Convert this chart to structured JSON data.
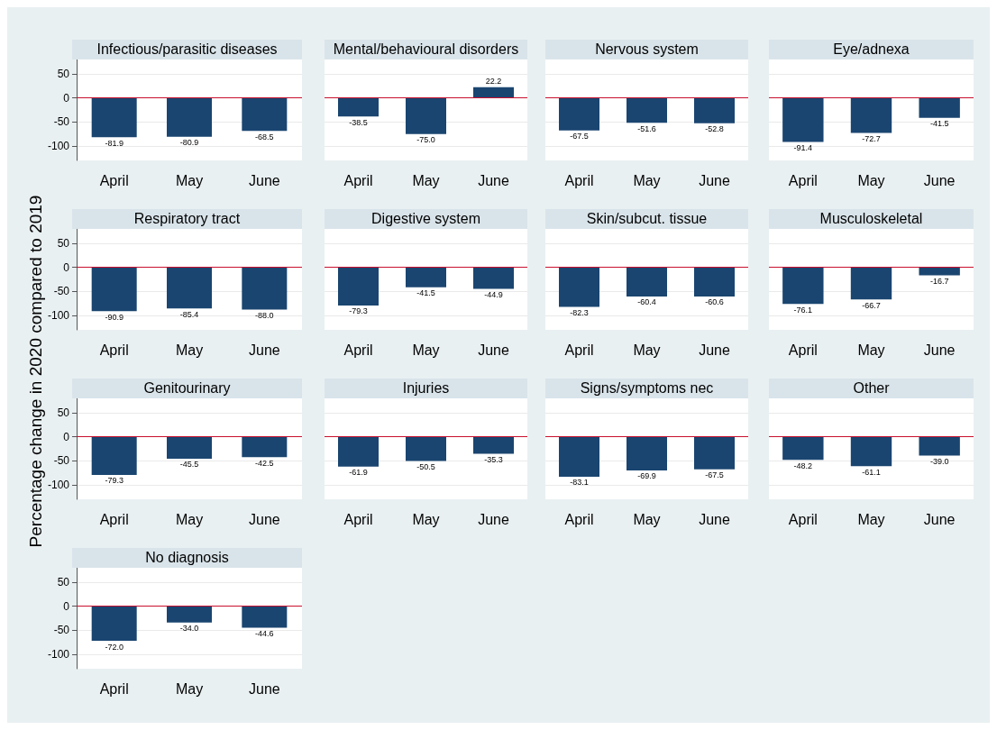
{
  "chart_data": [
    {
      "type": "bar",
      "title": "Infectious/parasitic diseases",
      "ylabel": "Percentage change in 2020 compared to 2019",
      "categories": [
        "April",
        "May",
        "June"
      ],
      "values": [
        -81.9,
        -80.9,
        -68.5
      ],
      "value_labels": [
        "-81.9",
        "-80.9",
        "-68.5"
      ],
      "color": "#1a4570",
      "ylim": [
        -130,
        80
      ],
      "yticks": [
        -100,
        -50,
        0,
        50
      ],
      "grid": "y",
      "ref_lines": [
        {
          "axis": "y",
          "value": 0,
          "color": "#c8102e"
        }
      ]
    },
    {
      "type": "bar",
      "title": "Mental/behavioural disorders",
      "categories": [
        "April",
        "May",
        "June"
      ],
      "values": [
        -38.5,
        -75,
        22.2
      ],
      "value_labels": [
        "-38.5",
        "-75.0",
        "22.2"
      ],
      "color": "#1a4570",
      "ylim": [
        -130,
        80
      ],
      "yticks": [
        -100,
        -50,
        0,
        50
      ],
      "grid": "y",
      "tick_labels": "x",
      "ref_lines": [
        {
          "axis": "y",
          "value": 0,
          "color": "#c8102e"
        }
      ]
    },
    {
      "type": "bar",
      "title": "Nervous system",
      "categories": [
        "April",
        "May",
        "June"
      ],
      "values": [
        -67.5,
        -51.6,
        -52.8
      ],
      "value_labels": [
        "-67.5",
        "-51.6",
        "-52.8"
      ],
      "color": "#1a4570",
      "ylim": [
        -130,
        80
      ],
      "yticks": [
        -100,
        -50,
        0,
        50
      ],
      "grid": "y",
      "tick_labels": "x",
      "ref_lines": [
        {
          "axis": "y",
          "value": 0,
          "color": "#c8102e"
        }
      ]
    },
    {
      "type": "bar",
      "title": "Eye/adnexa",
      "categories": [
        "April",
        "May",
        "June"
      ],
      "values": [
        -91.4,
        -72.7,
        -41.5
      ],
      "value_labels": [
        "-91.4",
        "-72.7",
        "-41.5"
      ],
      "color": "#1a4570",
      "ylim": [
        -130,
        80
      ],
      "yticks": [
        -100,
        -50,
        0,
        50
      ],
      "grid": "y",
      "tick_labels": "x",
      "ref_lines": [
        {
          "axis": "y",
          "value": 0,
          "color": "#c8102e"
        }
      ]
    },
    {
      "type": "bar",
      "title": "Respiratory tract",
      "categories": [
        "April",
        "May",
        "June"
      ],
      "values": [
        -90.9,
        -85.4,
        -88
      ],
      "value_labels": [
        "-90.9",
        "-85.4",
        "-88.0"
      ],
      "color": "#1a4570",
      "ylim": [
        -130,
        80
      ],
      "yticks": [
        -100,
        -50,
        0,
        50
      ],
      "grid": "y",
      "ref_lines": [
        {
          "axis": "y",
          "value": 0,
          "color": "#c8102e"
        }
      ]
    },
    {
      "type": "bar",
      "title": "Digestive system",
      "categories": [
        "April",
        "May",
        "June"
      ],
      "values": [
        -79.3,
        -41.5,
        -44.9
      ],
      "value_labels": [
        "-79.3",
        "-41.5",
        "-44.9"
      ],
      "color": "#1a4570",
      "ylim": [
        -130,
        80
      ],
      "yticks": [
        -100,
        -50,
        0,
        50
      ],
      "grid": "y",
      "tick_labels": "x",
      "ref_lines": [
        {
          "axis": "y",
          "value": 0,
          "color": "#c8102e"
        }
      ]
    },
    {
      "type": "bar",
      "title": "Skin/subcut. tissue",
      "categories": [
        "April",
        "May",
        "June"
      ],
      "values": [
        -82.3,
        -60.4,
        -60.6
      ],
      "value_labels": [
        "-82.3",
        "-60.4",
        "-60.6"
      ],
      "color": "#1a4570",
      "ylim": [
        -130,
        80
      ],
      "yticks": [
        -100,
        -50,
        0,
        50
      ],
      "grid": "y",
      "tick_labels": "x",
      "ref_lines": [
        {
          "axis": "y",
          "value": 0,
          "color": "#c8102e"
        }
      ]
    },
    {
      "type": "bar",
      "title": "Musculoskeletal",
      "categories": [
        "April",
        "May",
        "June"
      ],
      "values": [
        -76.1,
        -66.7,
        -16.7
      ],
      "value_labels": [
        "-76.1",
        "-66.7",
        "-16.7"
      ],
      "color": "#1a4570",
      "ylim": [
        -130,
        80
      ],
      "yticks": [
        -100,
        -50,
        0,
        50
      ],
      "grid": "y",
      "tick_labels": "x",
      "ref_lines": [
        {
          "axis": "y",
          "value": 0,
          "color": "#c8102e"
        }
      ]
    },
    {
      "type": "bar",
      "title": "Genitourinary",
      "categories": [
        "April",
        "May",
        "June"
      ],
      "values": [
        -79.3,
        -45.5,
        -42.5
      ],
      "value_labels": [
        "-79.3",
        "-45.5",
        "-42.5"
      ],
      "color": "#1a4570",
      "ylim": [
        -130,
        80
      ],
      "yticks": [
        -100,
        -50,
        0,
        50
      ],
      "grid": "y",
      "ref_lines": [
        {
          "axis": "y",
          "value": 0,
          "color": "#c8102e"
        }
      ]
    },
    {
      "type": "bar",
      "title": "Injuries",
      "categories": [
        "April",
        "May",
        "June"
      ],
      "values": [
        -61.9,
        -50.5,
        -35.3
      ],
      "value_labels": [
        "-61.9",
        "-50.5",
        "-35.3"
      ],
      "color": "#1a4570",
      "ylim": [
        -130,
        80
      ],
      "yticks": [
        -100,
        -50,
        0,
        50
      ],
      "grid": "y",
      "tick_labels": "x",
      "ref_lines": [
        {
          "axis": "y",
          "value": 0,
          "color": "#c8102e"
        }
      ]
    },
    {
      "type": "bar",
      "title": "Signs/symptoms nec",
      "categories": [
        "April",
        "May",
        "June"
      ],
      "values": [
        -83.1,
        -69.9,
        -67.5
      ],
      "value_labels": [
        "-83.1",
        "-69.9",
        "-67.5"
      ],
      "color": "#1a4570",
      "ylim": [
        -130,
        80
      ],
      "yticks": [
        -100,
        -50,
        0,
        50
      ],
      "grid": "y",
      "tick_labels": "x",
      "ref_lines": [
        {
          "axis": "y",
          "value": 0,
          "color": "#c8102e"
        }
      ]
    },
    {
      "type": "bar",
      "title": "Other",
      "categories": [
        "April",
        "May",
        "June"
      ],
      "values": [
        -48.2,
        -61.1,
        -39
      ],
      "value_labels": [
        "-48.2",
        "-61.1",
        "-39.0"
      ],
      "color": "#1a4570",
      "ylim": [
        -130,
        80
      ],
      "yticks": [
        -100,
        -50,
        0,
        50
      ],
      "grid": "y",
      "tick_labels": "x",
      "ref_lines": [
        {
          "axis": "y",
          "value": 0,
          "color": "#c8102e"
        }
      ]
    },
    {
      "type": "bar",
      "title": "No diagnosis",
      "categories": [
        "April",
        "May",
        "June"
      ],
      "values": [
        -72,
        -34,
        -44.6
      ],
      "value_labels": [
        "-72.0",
        "-34.0",
        "-44.6"
      ],
      "color": "#1a4570",
      "ylim": [
        -130,
        80
      ],
      "yticks": [
        -100,
        -50,
        0,
        50
      ],
      "grid": "y",
      "ref_lines": [
        {
          "axis": "y",
          "value": 0,
          "color": "#c8102e"
        }
      ]
    }
  ]
}
